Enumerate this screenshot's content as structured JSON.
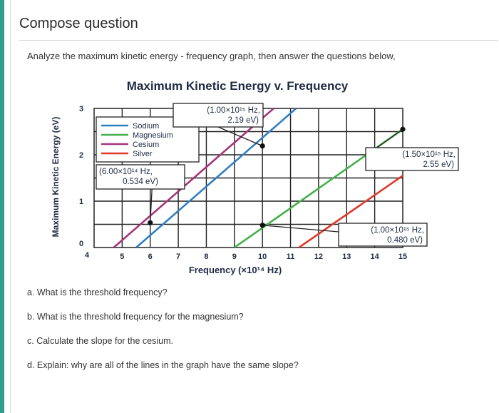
{
  "header": {
    "title": "Compose question"
  },
  "intro": "Analyze the maximum kinetic energy - frequency graph, then answer the questions below,",
  "chart_data": {
    "type": "line",
    "title": "Maximum Kinetic Energy v. Frequency",
    "xlabel": "Frequency (×10¹⁴ Hz)",
    "ylabel": "Maximum Kinetic Energy (eV)",
    "xlim": [
      4,
      15
    ],
    "ylim": [
      0,
      3
    ],
    "x_ticks": [
      "4",
      "5",
      "6",
      "7",
      "8",
      "9",
      "10",
      "11",
      "12",
      "13",
      "14",
      "15"
    ],
    "y_ticks": [
      "0",
      "1",
      "2",
      "3"
    ],
    "grid": true,
    "legend_position": "top-left",
    "series": [
      {
        "name": "Sodium",
        "color": "#2f7fc1",
        "x": [
          5.5,
          11.2
        ],
        "y": [
          0,
          3
        ]
      },
      {
        "name": "Magnesium",
        "color": "#45b049",
        "x": [
          9.0,
          15.0
        ],
        "y": [
          0,
          2.55
        ]
      },
      {
        "name": "Cesium",
        "color": "#a3357a",
        "x": [
          4.7,
          10.4
        ],
        "y": [
          0,
          3
        ]
      },
      {
        "name": "Silver",
        "color": "#e0392b",
        "x": [
          11.3,
          15.0
        ],
        "y": [
          0,
          1.55
        ]
      }
    ],
    "points": [
      {
        "x": 6.0,
        "y": 0.534,
        "label": [
          "(6.00×10¹⁴ Hz,",
          "0.534 eV)"
        ]
      },
      {
        "x": 10.0,
        "y": 2.19,
        "label": [
          "(1.00×10¹⁵ Hz,",
          "2.19 eV)"
        ]
      },
      {
        "x": 15.0,
        "y": 2.55,
        "label": [
          "(1.50×10¹⁵ Hz,",
          "2.55 eV)"
        ]
      },
      {
        "x": 10.0,
        "y": 0.48,
        "label": [
          "(1.00×10¹⁵ Hz,",
          "0.480 eV)"
        ]
      }
    ]
  },
  "questions": [
    "a. What is the threshold frequency?",
    "b. What is the threshold frequency for the magnesium?",
    "c. Calculate the slope for the cesium.",
    "d. Explain: why are all of the lines in the graph have the same slope?"
  ]
}
